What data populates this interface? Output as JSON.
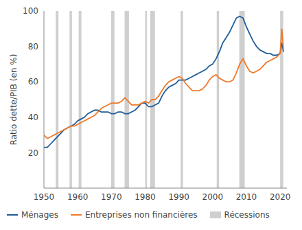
{
  "chart_data": {
    "type": "line",
    "y_label": "Ratio dette/PIB (en %)",
    "x": [
      1950,
      1951,
      1952,
      1953,
      1954,
      1955,
      1956,
      1957,
      1958,
      1959,
      1960,
      1961,
      1962,
      1963,
      1964,
      1965,
      1966,
      1967,
      1968,
      1969,
      1970,
      1971,
      1972,
      1973,
      1974,
      1975,
      1976,
      1977,
      1978,
      1979,
      1980,
      1981,
      1982,
      1983,
      1984,
      1985,
      1986,
      1987,
      1988,
      1989,
      1990,
      1991,
      1992,
      1993,
      1994,
      1995,
      1996,
      1997,
      1998,
      1999,
      2000,
      2001,
      2002,
      2003,
      2004,
      2005,
      2006,
      2007,
      2008,
      2009,
      2010,
      2011,
      2012,
      2013,
      2014,
      2015,
      2016,
      2017,
      2018,
      2019,
      2020,
      2020.5,
      2021
    ],
    "series": [
      {
        "name": "Ménages",
        "color": "#1f5c99",
        "values": [
          23,
          23,
          25,
          27,
          29,
          31,
          33,
          34,
          35,
          36,
          38,
          39,
          40,
          42,
          43,
          44,
          44,
          43,
          43,
          43,
          42,
          42,
          43,
          43,
          42,
          42,
          43,
          44,
          46,
          48,
          48,
          46,
          46,
          47,
          48,
          52,
          55,
          57,
          58,
          59,
          61,
          61,
          61,
          62,
          63,
          64,
          65,
          66,
          67,
          69,
          70,
          73,
          77,
          82,
          85,
          88,
          92,
          96,
          97,
          96,
          91,
          87,
          83,
          80,
          78,
          77,
          76,
          76,
          75,
          75,
          76,
          82,
          77
        ]
      },
      {
        "name": "Entreprises non financières",
        "color": "#f07a2a",
        "values": [
          30,
          28,
          29,
          30,
          31,
          32,
          33,
          34,
          35,
          35,
          36,
          37,
          38,
          39,
          40,
          41,
          43,
          45,
          46,
          47,
          48,
          48,
          48,
          49,
          51,
          49,
          47,
          47,
          47,
          48,
          49,
          48,
          50,
          50,
          52,
          55,
          58,
          60,
          61,
          62,
          63,
          62,
          59,
          57,
          55,
          55,
          55,
          56,
          58,
          61,
          63,
          64,
          62,
          61,
          60,
          60,
          61,
          65,
          70,
          73,
          69,
          66,
          65,
          66,
          67,
          69,
          71,
          72,
          73,
          74,
          76,
          90,
          78
        ]
      }
    ],
    "recessions": {
      "name": "Récessions",
      "color": "#cfcfcf",
      "periods": [
        [
          1953.5,
          1954.3
        ],
        [
          1957.6,
          1958.3
        ],
        [
          1960.3,
          1961.1
        ],
        [
          1969.9,
          1970.9
        ],
        [
          1973.9,
          1975.2
        ],
        [
          1980.0,
          1980.5
        ],
        [
          1981.5,
          1982.9
        ],
        [
          1990.5,
          1991.2
        ],
        [
          2001.2,
          2001.9
        ],
        [
          2007.9,
          2009.5
        ],
        [
          2020.0,
          2020.9
        ]
      ]
    },
    "xlim": [
      1950,
      2022
    ],
    "xticks": [
      1950,
      1960,
      1970,
      1980,
      1990,
      2000,
      2010,
      2020
    ],
    "ylim": [
      0,
      100
    ],
    "yticks": [
      20,
      40,
      60,
      80,
      100
    ],
    "grid": false,
    "legend": "bottom"
  }
}
